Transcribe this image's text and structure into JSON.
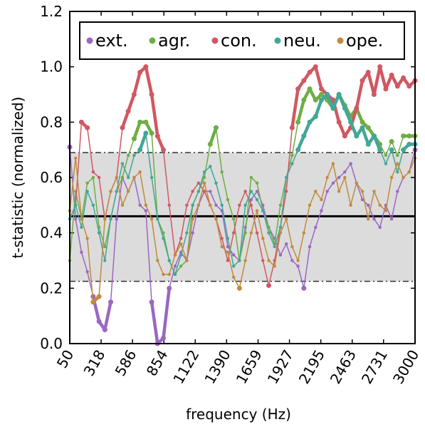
{
  "chart_data": {
    "type": "line",
    "xlabel": "frequency (Hz)",
    "ylabel": "t-statistic (normalized)",
    "x": [
      50,
      100,
      150,
      200,
      250,
      300,
      350,
      400,
      450,
      500,
      550,
      600,
      650,
      700,
      750,
      800,
      850,
      900,
      950,
      1000,
      1050,
      1100,
      1150,
      1200,
      1250,
      1300,
      1350,
      1400,
      1450,
      1500,
      1550,
      1600,
      1650,
      1700,
      1750,
      1800,
      1850,
      1900,
      1950,
      2000,
      2050,
      2100,
      2150,
      2200,
      2250,
      2300,
      2350,
      2400,
      2450,
      2500,
      2550,
      2600,
      2650,
      2700,
      2750,
      2800,
      2850,
      2900,
      2950,
      3000
    ],
    "xlim": [
      50,
      3000
    ],
    "xticks": [
      50,
      318,
      586,
      854,
      1122,
      1390,
      1659,
      1927,
      2195,
      2463,
      2731,
      3000
    ],
    "ylim": [
      0,
      1.2
    ],
    "yticks": [
      {
        "value": 0,
        "label": "0.0"
      },
      0.2,
      0.4,
      0.6,
      0.8,
      {
        "value": 1,
        "label": "1.0"
      },
      1.2
    ],
    "band": [
      0.225,
      0.69
    ],
    "hline": 0.46,
    "series": [
      {
        "name": "ext.",
        "color": "#9b67c2",
        "values": [
          0.71,
          0.45,
          0.33,
          0.26,
          0.17,
          0.08,
          0.05,
          0.15,
          0.45,
          0.6,
          0.55,
          0.6,
          0.5,
          0.48,
          0.15,
          0.0,
          0.02,
          0.2,
          0.28,
          0.33,
          0.3,
          0.4,
          0.5,
          0.55,
          0.55,
          0.5,
          0.48,
          0.35,
          0.32,
          0.3,
          0.42,
          0.52,
          0.55,
          0.5,
          0.42,
          0.38,
          0.32,
          0.36,
          0.3,
          0.28,
          0.2,
          0.35,
          0.42,
          0.48,
          0.55,
          0.58,
          0.6,
          0.62,
          0.65,
          0.58,
          0.52,
          0.5,
          0.45,
          0.42,
          0.5,
          0.45,
          0.55,
          0.6,
          0.62,
          0.7
        ]
      },
      {
        "name": "agr.",
        "color": "#6fad45",
        "values": [
          0.3,
          0.55,
          0.45,
          0.58,
          0.6,
          0.42,
          0.35,
          0.45,
          0.55,
          0.6,
          0.68,
          0.74,
          0.8,
          0.8,
          0.76,
          0.45,
          0.4,
          0.3,
          0.25,
          0.28,
          0.3,
          0.5,
          0.55,
          0.6,
          0.72,
          0.78,
          0.62,
          0.52,
          0.45,
          0.3,
          0.4,
          0.6,
          0.58,
          0.48,
          0.42,
          0.36,
          0.5,
          0.6,
          0.68,
          0.8,
          0.88,
          0.92,
          0.88,
          0.9,
          0.88,
          0.85,
          0.9,
          0.86,
          0.82,
          0.85,
          0.8,
          0.78,
          0.75,
          0.72,
          0.68,
          0.73,
          0.68,
          0.75,
          0.75,
          0.75
        ]
      },
      {
        "name": "con.",
        "color": "#d05862",
        "values": [
          0.45,
          0.5,
          0.8,
          0.78,
          0.62,
          0.6,
          0.45,
          0.55,
          0.6,
          0.78,
          0.84,
          0.9,
          0.98,
          1.0,
          0.9,
          0.75,
          0.7,
          0.5,
          0.32,
          0.38,
          0.5,
          0.55,
          0.58,
          0.55,
          0.5,
          0.45,
          0.38,
          0.3,
          0.4,
          0.5,
          0.55,
          0.5,
          0.4,
          0.3,
          0.21,
          0.3,
          0.42,
          0.55,
          0.78,
          0.92,
          0.95,
          0.98,
          1.0,
          0.92,
          0.9,
          0.88,
          0.8,
          0.75,
          0.78,
          0.85,
          0.95,
          0.98,
          0.9,
          1.0,
          0.92,
          0.97,
          0.93,
          0.96,
          0.93,
          0.95
        ]
      },
      {
        "name": "neu.",
        "color": "#41a797",
        "values": [
          0.45,
          0.5,
          0.42,
          0.55,
          0.5,
          0.4,
          0.3,
          0.45,
          0.55,
          0.65,
          0.6,
          0.68,
          0.7,
          0.76,
          0.6,
          0.45,
          0.38,
          0.3,
          0.25,
          0.32,
          0.4,
          0.5,
          0.55,
          0.62,
          0.64,
          0.58,
          0.5,
          0.38,
          0.28,
          0.3,
          0.5,
          0.55,
          0.52,
          0.48,
          0.4,
          0.35,
          0.42,
          0.6,
          0.65,
          0.7,
          0.75,
          0.8,
          0.82,
          0.88,
          0.9,
          0.85,
          0.9,
          0.85,
          0.8,
          0.75,
          0.78,
          0.72,
          0.75,
          0.7,
          0.65,
          0.7,
          0.62,
          0.7,
          0.72,
          0.72
        ]
      },
      {
        "name": "ope.",
        "color": "#c18a3f",
        "values": [
          0.48,
          0.67,
          0.45,
          0.38,
          0.15,
          0.17,
          0.45,
          0.55,
          0.6,
          0.5,
          0.55,
          0.6,
          0.62,
          0.5,
          0.45,
          0.3,
          0.25,
          0.25,
          0.32,
          0.36,
          0.3,
          0.45,
          0.5,
          0.58,
          0.5,
          0.45,
          0.35,
          0.33,
          0.24,
          0.2,
          0.3,
          0.4,
          0.48,
          0.38,
          0.3,
          0.28,
          0.4,
          0.45,
          0.35,
          0.3,
          0.4,
          0.5,
          0.55,
          0.52,
          0.6,
          0.65,
          0.55,
          0.6,
          0.5,
          0.58,
          0.55,
          0.45,
          0.55,
          0.5,
          0.48,
          0.6,
          0.65,
          0.6,
          0.62,
          0.67
        ]
      }
    ]
  }
}
